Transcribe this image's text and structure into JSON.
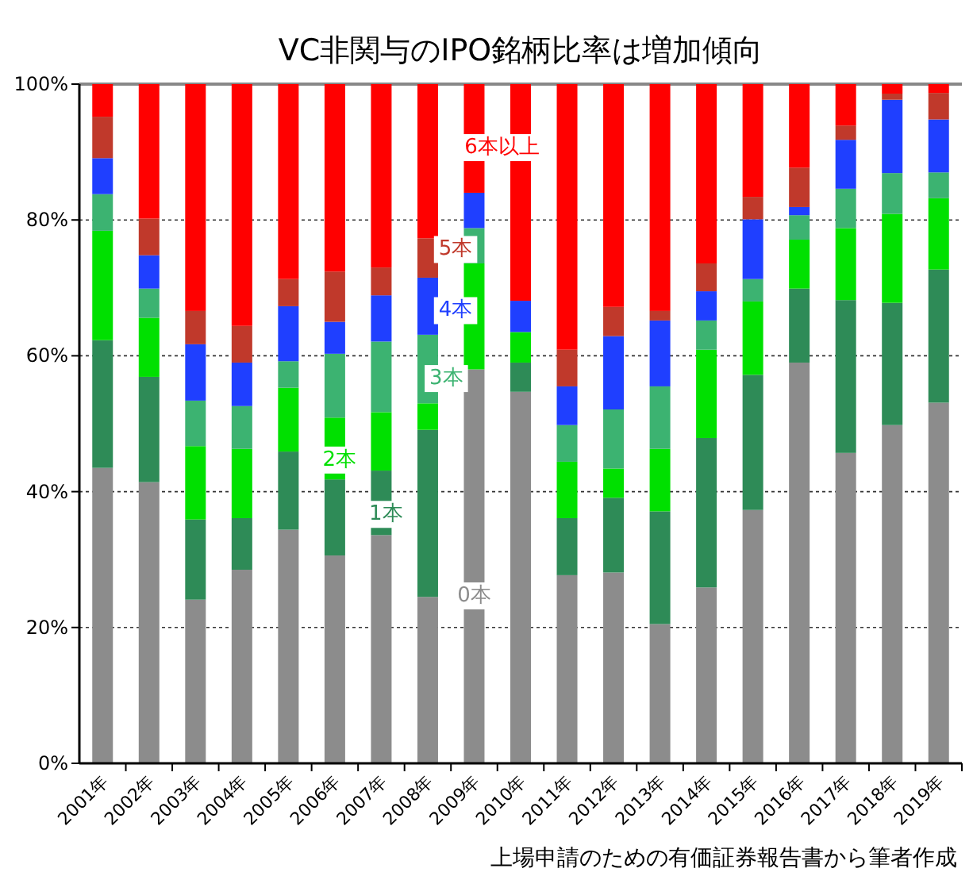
{
  "chart_data": {
    "type": "bar",
    "stacked": true,
    "title": "VC非関与のIPO銘柄比率は増加傾向",
    "categories": [
      "2001年",
      "2002年",
      "2003年",
      "2004年",
      "2005年",
      "2006年",
      "2007年",
      "2008年",
      "2009年",
      "2010年",
      "2011年",
      "2012年",
      "2013年",
      "2014年",
      "2015年",
      "2016年",
      "2017年",
      "2018年",
      "2019年"
    ],
    "series": [
      {
        "name": "0本",
        "color": "#8c8c8c",
        "values": [
          43.5,
          41.4,
          24.1,
          28.5,
          34.4,
          30.6,
          33.6,
          24.5,
          58.0,
          54.7,
          27.7,
          28.1,
          20.5,
          25.9,
          37.3,
          59.0,
          45.7,
          49.8,
          53.1
        ]
      },
      {
        "name": "1本",
        "color": "#2e8b57",
        "values": [
          18.8,
          15.5,
          11.8,
          7.6,
          11.5,
          11.2,
          9.5,
          24.6,
          0,
          4.3,
          8.4,
          11.0,
          16.6,
          22.0,
          19.9,
          10.9,
          22.5,
          18.0,
          19.6
        ]
      },
      {
        "name": "2本",
        "color": "#00e000",
        "values": [
          16.1,
          8.7,
          10.8,
          10.2,
          9.4,
          9.1,
          8.6,
          3.9,
          15.6,
          4.5,
          8.3,
          4.3,
          9.2,
          13.0,
          10.8,
          7.2,
          10.6,
          13.1,
          10.5
        ]
      },
      {
        "name": "3本",
        "color": "#3cb371",
        "values": [
          5.4,
          4.3,
          6.7,
          6.3,
          3.9,
          9.4,
          10.4,
          10.1,
          5.2,
          0,
          5.4,
          8.7,
          9.2,
          4.3,
          3.3,
          3.6,
          5.8,
          6.0,
          3.8
        ]
      },
      {
        "name": "4本",
        "color": "#1f3fff",
        "values": [
          5.3,
          4.9,
          8.3,
          6.4,
          8.1,
          4.7,
          6.8,
          8.4,
          5.2,
          4.6,
          5.7,
          10.8,
          9.7,
          4.3,
          8.8,
          1.2,
          7.2,
          10.8,
          7.8
        ]
      },
      {
        "name": "5本",
        "color": "#c0392b",
        "values": [
          6.1,
          5.4,
          4.9,
          5.4,
          4.0,
          7.4,
          4.1,
          5.8,
          0,
          0,
          5.4,
          4.3,
          1.4,
          4.1,
          3.3,
          5.8,
          2.1,
          0.9,
          3.9
        ]
      },
      {
        "name": "6本以上",
        "color": "#ff0000",
        "values": [
          4.8,
          19.8,
          33.4,
          35.6,
          28.7,
          27.6,
          27.0,
          22.7,
          16.0,
          31.9,
          39.1,
          32.8,
          33.4,
          26.4,
          16.6,
          12.3,
          6.1,
          1.4,
          1.3
        ]
      }
    ],
    "ylim": [
      0,
      100
    ],
    "yticks": [
      {
        "value": 0,
        "label": "0%"
      },
      {
        "value": 20,
        "label": "20%"
      },
      {
        "value": 40,
        "label": "40%"
      },
      {
        "value": 60,
        "label": "60%"
      },
      {
        "value": 80,
        "label": "80%"
      },
      {
        "value": 100,
        "label": "100%"
      }
    ],
    "grid": "y",
    "legend": false,
    "annotations": [
      "上場申請のための有価証券報告書から筆者作成"
    ]
  }
}
